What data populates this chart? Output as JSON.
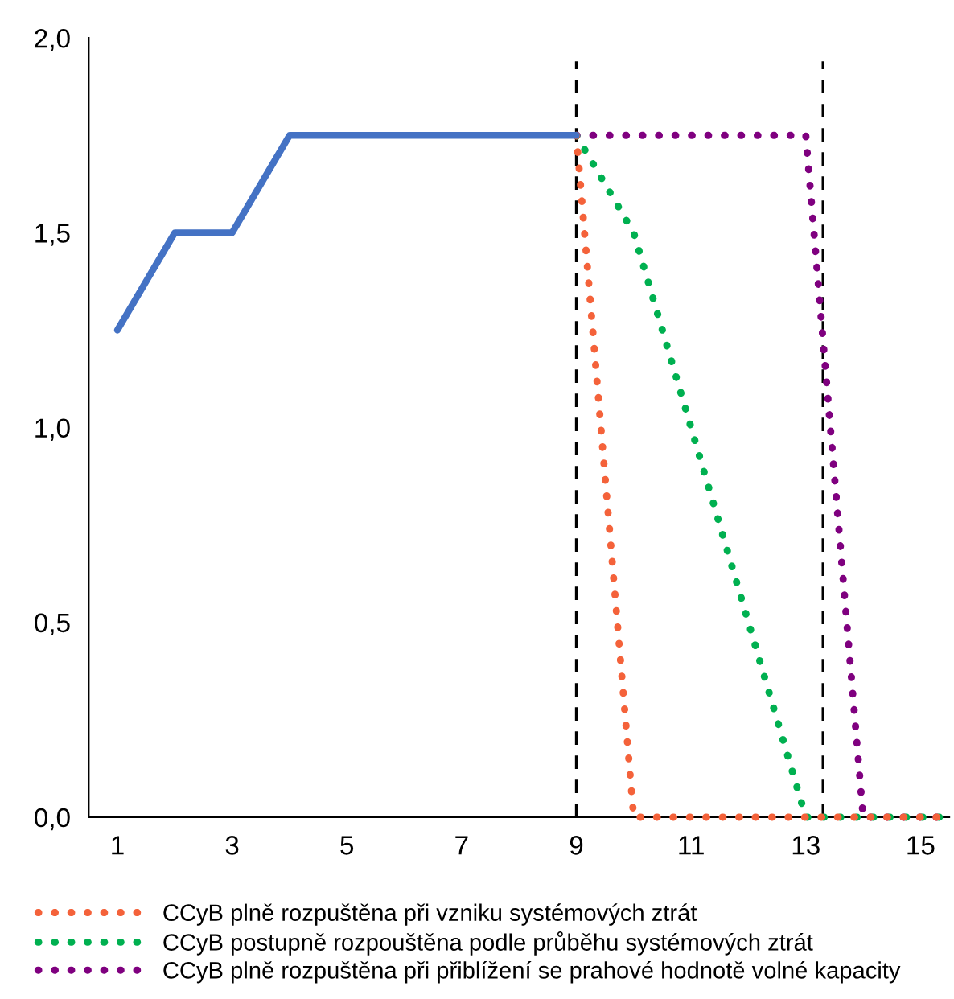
{
  "chart_data": {
    "type": "line",
    "xlim": [
      0.5,
      15.5
    ],
    "xticks": [
      1,
      3,
      5,
      7,
      9,
      11,
      13,
      15
    ],
    "ylim": [
      0,
      2.0
    ],
    "yticks": [
      {
        "value": 0,
        "label": "0,0"
      },
      {
        "value": 0.5,
        "label": "0,5"
      },
      {
        "value": 1.0,
        "label": "1,0"
      },
      {
        "value": 1.5,
        "label": "1,5"
      },
      {
        "value": 2.0,
        "label": "2,0"
      }
    ],
    "grid": false,
    "legend": "bottom",
    "series": [
      {
        "color": "#4472c4",
        "line_style": "solid",
        "x": [
          1,
          2,
          3,
          4,
          5,
          6,
          7,
          8,
          9
        ],
        "values": [
          1.25,
          1.5,
          1.5,
          1.75,
          1.75,
          1.75,
          1.75,
          1.75,
          1.75
        ]
      },
      {
        "name": "CCyB plně rozpuštěna při vzniku systémových ztrát",
        "color": "#f4623a",
        "line_style": "dotted",
        "x": [
          9,
          10,
          11,
          12,
          13,
          14,
          15,
          15.5
        ],
        "values": [
          1.75,
          0,
          0,
          0,
          0,
          0,
          0,
          0
        ]
      },
      {
        "name": "CCyB postupně rozpouštěna podle průběhu systémových ztrát",
        "color": "#00b050",
        "line_style": "dotted",
        "x": [
          9,
          10,
          11,
          12,
          13,
          14,
          15,
          15.5
        ],
        "values": [
          1.75,
          1.5,
          1.0,
          0.5,
          0,
          0,
          0,
          0
        ]
      },
      {
        "name": "CCyB plně rozpuštěna při přiblížení se prahové hodnotě volné kapacity",
        "color": "#7f007f",
        "line_style": "dotted",
        "x": [
          9,
          10,
          11,
          12,
          13,
          14,
          15,
          15.5
        ],
        "values": [
          1.75,
          1.75,
          1.75,
          1.75,
          1.75,
          0,
          0,
          0
        ]
      }
    ],
    "ref_lines": [
      {
        "axis": "x",
        "value": 9,
        "color": "#000000",
        "line_style": "dashed"
      },
      {
        "axis": "x",
        "value": 13.3,
        "color": "#000000",
        "line_style": "dashed"
      }
    ]
  }
}
